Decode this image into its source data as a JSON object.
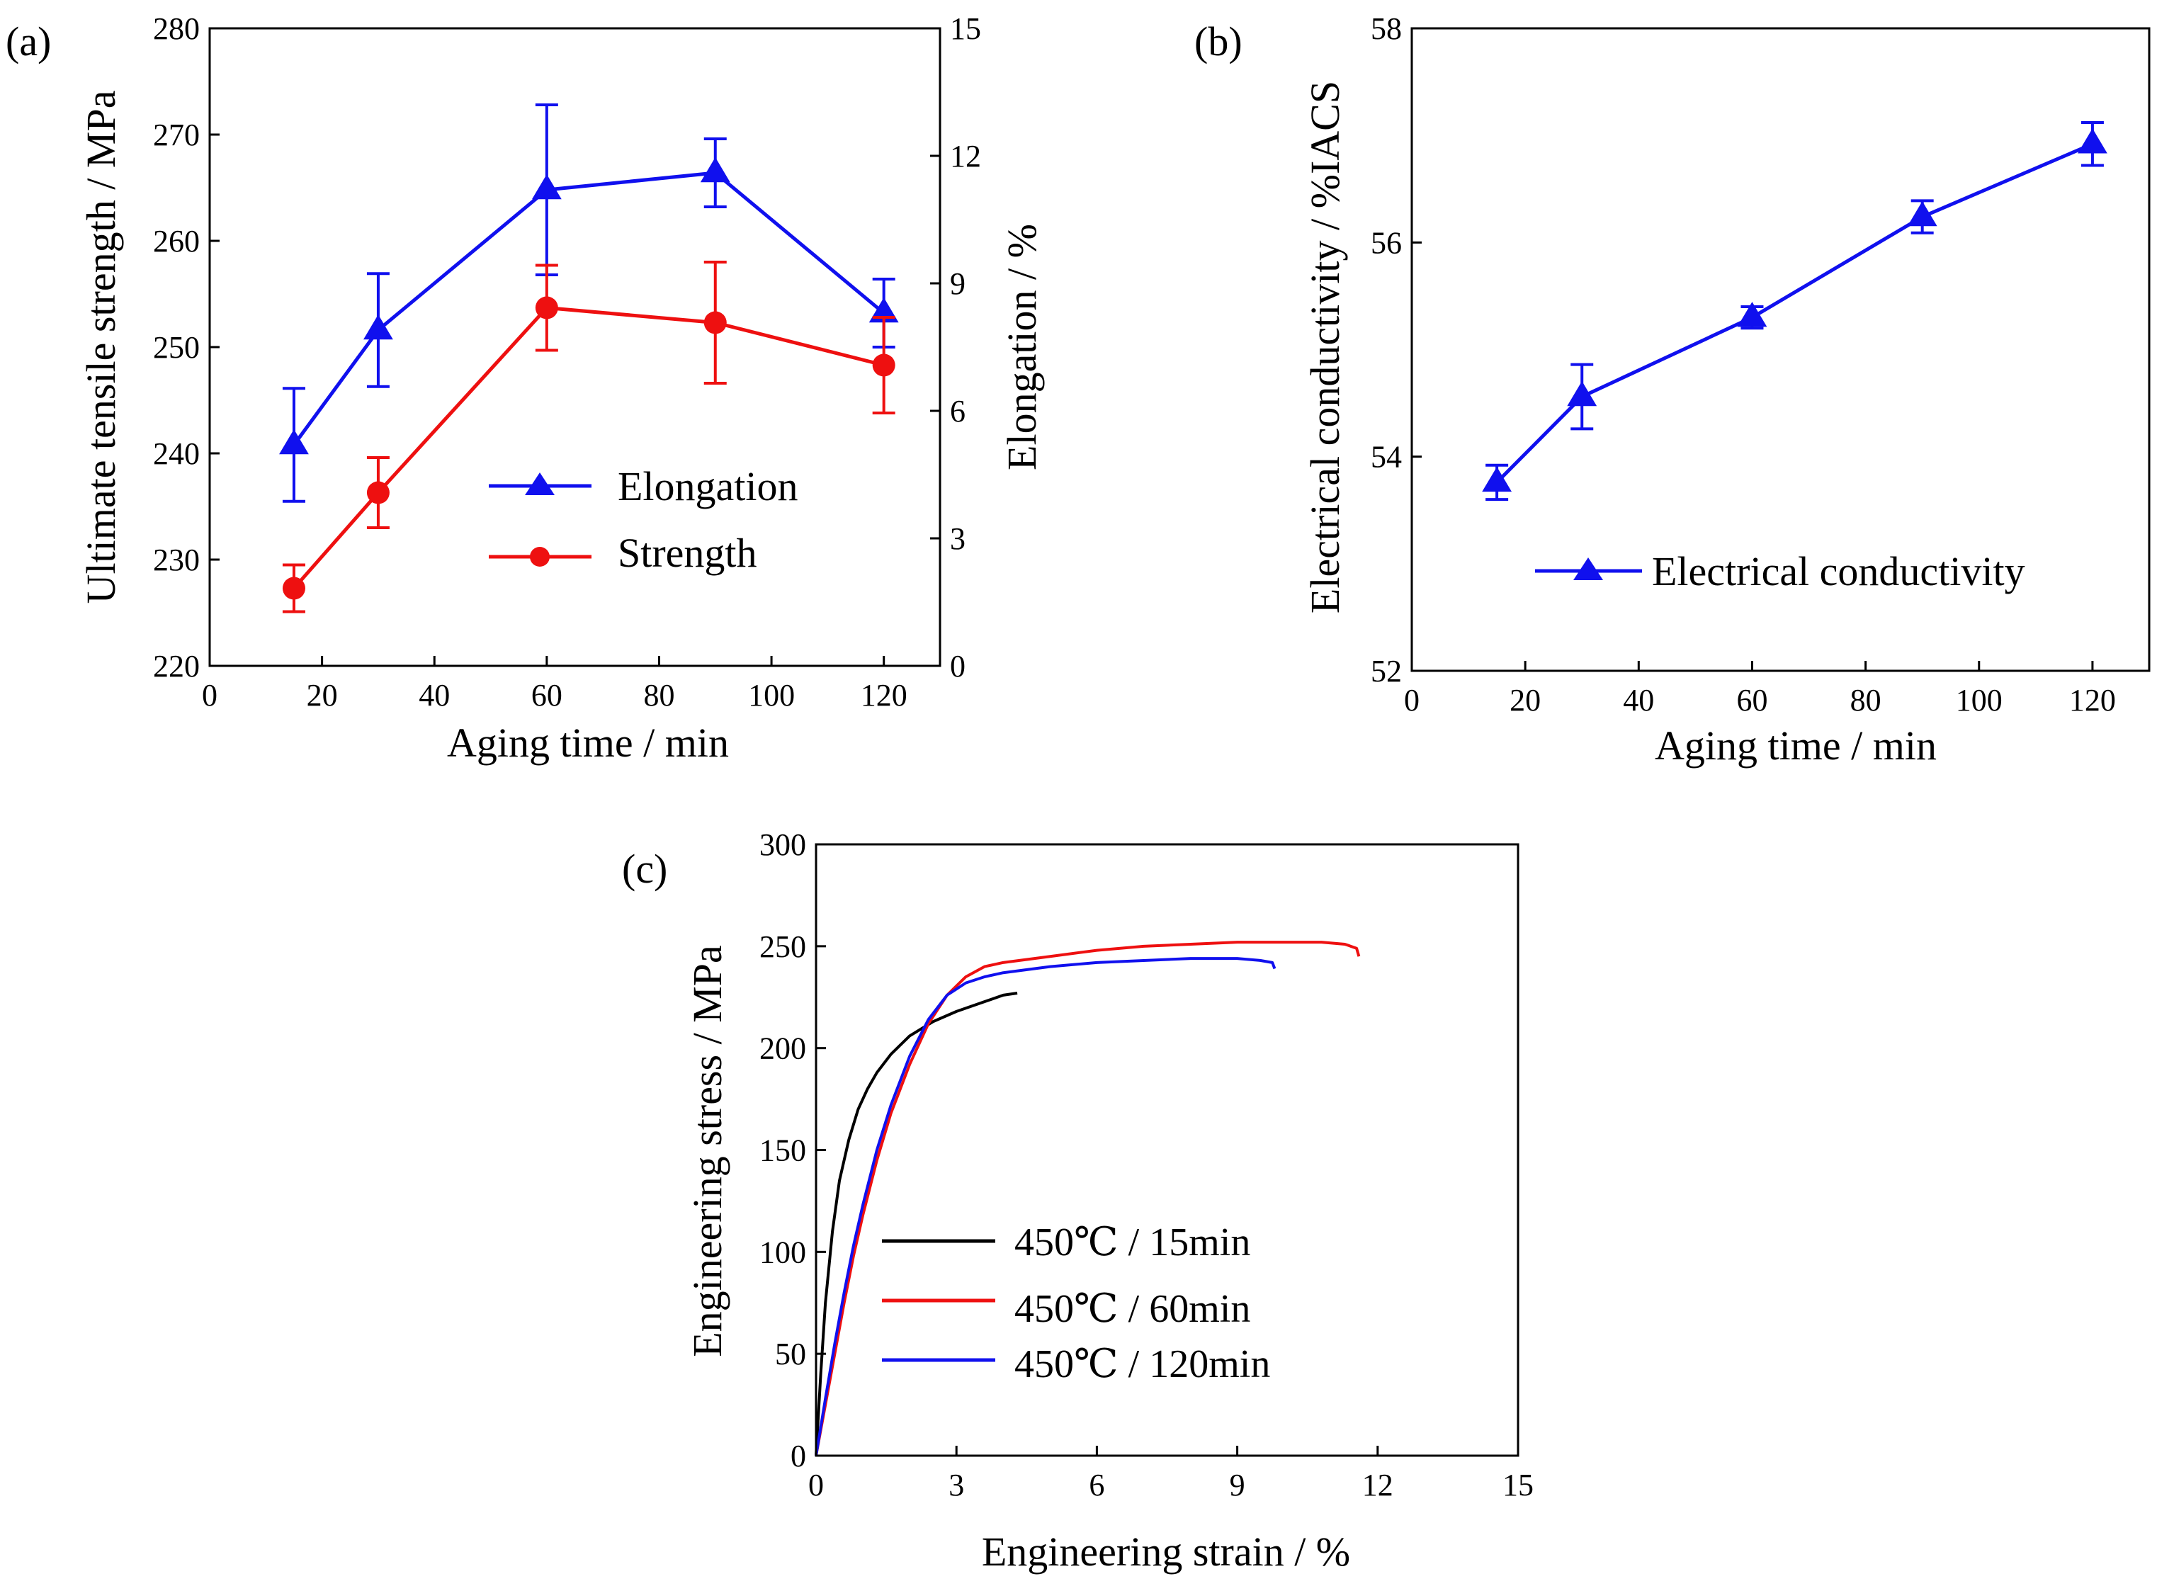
{
  "colors": {
    "blue": "#1010ee",
    "red": "#ee1010",
    "black": "#000000"
  },
  "chart_data": [
    {
      "id": "a",
      "panel_label": "(a)",
      "type": "line",
      "xlabel": "Aging time / min",
      "ylabel": "Ultimate tensile strength / MPa",
      "y2label": "Elongation / %",
      "xlim": [
        0,
        130
      ],
      "ylim": [
        220,
        280
      ],
      "y2lim": [
        0,
        15
      ],
      "xticks": [
        0,
        20,
        40,
        60,
        80,
        100,
        120
      ],
      "yticks": [
        220,
        230,
        240,
        250,
        260,
        270,
        280
      ],
      "y2ticks": [
        0,
        3,
        6,
        9,
        12,
        15
      ],
      "legend_position": "center",
      "x": [
        15,
        30,
        60,
        90,
        120
      ],
      "series": [
        {
          "name": "Elongation",
          "axis": "right",
          "marker": "triangle",
          "color": "blue",
          "values": [
            5.2,
            7.9,
            11.2,
            11.6,
            8.3
          ],
          "error": [
            1.33,
            1.33,
            2.0,
            0.8,
            0.8
          ]
        },
        {
          "name": "Strength",
          "axis": "left",
          "marker": "circle",
          "color": "red",
          "values": [
            227.3,
            236.3,
            253.7,
            252.3,
            248.3
          ],
          "error": [
            2.2,
            3.3,
            4.0,
            5.7,
            4.5
          ]
        }
      ]
    },
    {
      "id": "b",
      "panel_label": "(b)",
      "type": "line",
      "xlabel": "Aging time / min",
      "ylabel": "Electrical conductivity / %IACS",
      "xlim": [
        0,
        130
      ],
      "ylim": [
        52,
        58
      ],
      "xticks": [
        0,
        20,
        40,
        60,
        80,
        100,
        120
      ],
      "yticks": [
        52,
        54,
        56,
        58
      ],
      "legend_position": "bottom-right",
      "x": [
        15,
        30,
        60,
        90,
        120
      ],
      "series": [
        {
          "name": "Electrical conductivity",
          "marker": "triangle",
          "color": "blue",
          "values": [
            53.76,
            54.56,
            55.3,
            56.24,
            56.92
          ],
          "error": [
            0.16,
            0.3,
            0.1,
            0.15,
            0.2
          ]
        }
      ]
    },
    {
      "id": "c",
      "panel_label": "(c)",
      "type": "line",
      "xlabel": "Engineering strain / %",
      "ylabel": "Engineering stress / MPa",
      "xlim": [
        0,
        15
      ],
      "ylim": [
        0,
        300
      ],
      "xticks": [
        0,
        3,
        6,
        9,
        12,
        15
      ],
      "yticks": [
        0,
        50,
        100,
        150,
        200,
        250,
        300
      ],
      "legend_position": "bottom-center",
      "series": [
        {
          "name": "450℃ / 15min",
          "color": "black",
          "x": [
            0,
            0.1,
            0.2,
            0.35,
            0.5,
            0.7,
            0.9,
            1.1,
            1.3,
            1.6,
            2.0,
            2.5,
            3.0,
            3.5,
            4.0,
            4.3
          ],
          "y": [
            0,
            40,
            75,
            110,
            135,
            155,
            170,
            180,
            188,
            197,
            206,
            213,
            218,
            222,
            226,
            227
          ]
        },
        {
          "name": "450℃ / 60min",
          "color": "red",
          "x": [
            0,
            0.2,
            0.4,
            0.6,
            0.8,
            1.0,
            1.3,
            1.6,
            2.0,
            2.4,
            2.8,
            3.2,
            3.6,
            4.0,
            5.0,
            6.0,
            7.0,
            8.0,
            9.0,
            10.0,
            10.8,
            11.3,
            11.55,
            11.6
          ],
          "y": [
            0,
            25,
            50,
            75,
            98,
            118,
            145,
            168,
            192,
            212,
            226,
            235,
            240,
            242,
            245,
            248,
            250,
            251,
            252,
            252,
            252,
            251,
            249,
            245
          ]
        },
        {
          "name": "450℃ / 120min",
          "color": "blue",
          "x": [
            0,
            0.2,
            0.4,
            0.6,
            0.8,
            1.0,
            1.3,
            1.6,
            2.0,
            2.4,
            2.8,
            3.2,
            3.6,
            4.0,
            5.0,
            6.0,
            7.0,
            8.0,
            9.0,
            9.5,
            9.75,
            9.8
          ],
          "y": [
            0,
            28,
            55,
            80,
            103,
            123,
            150,
            172,
            196,
            214,
            226,
            232,
            235,
            237,
            240,
            242,
            243,
            244,
            244,
            243,
            242,
            239
          ]
        }
      ]
    }
  ]
}
